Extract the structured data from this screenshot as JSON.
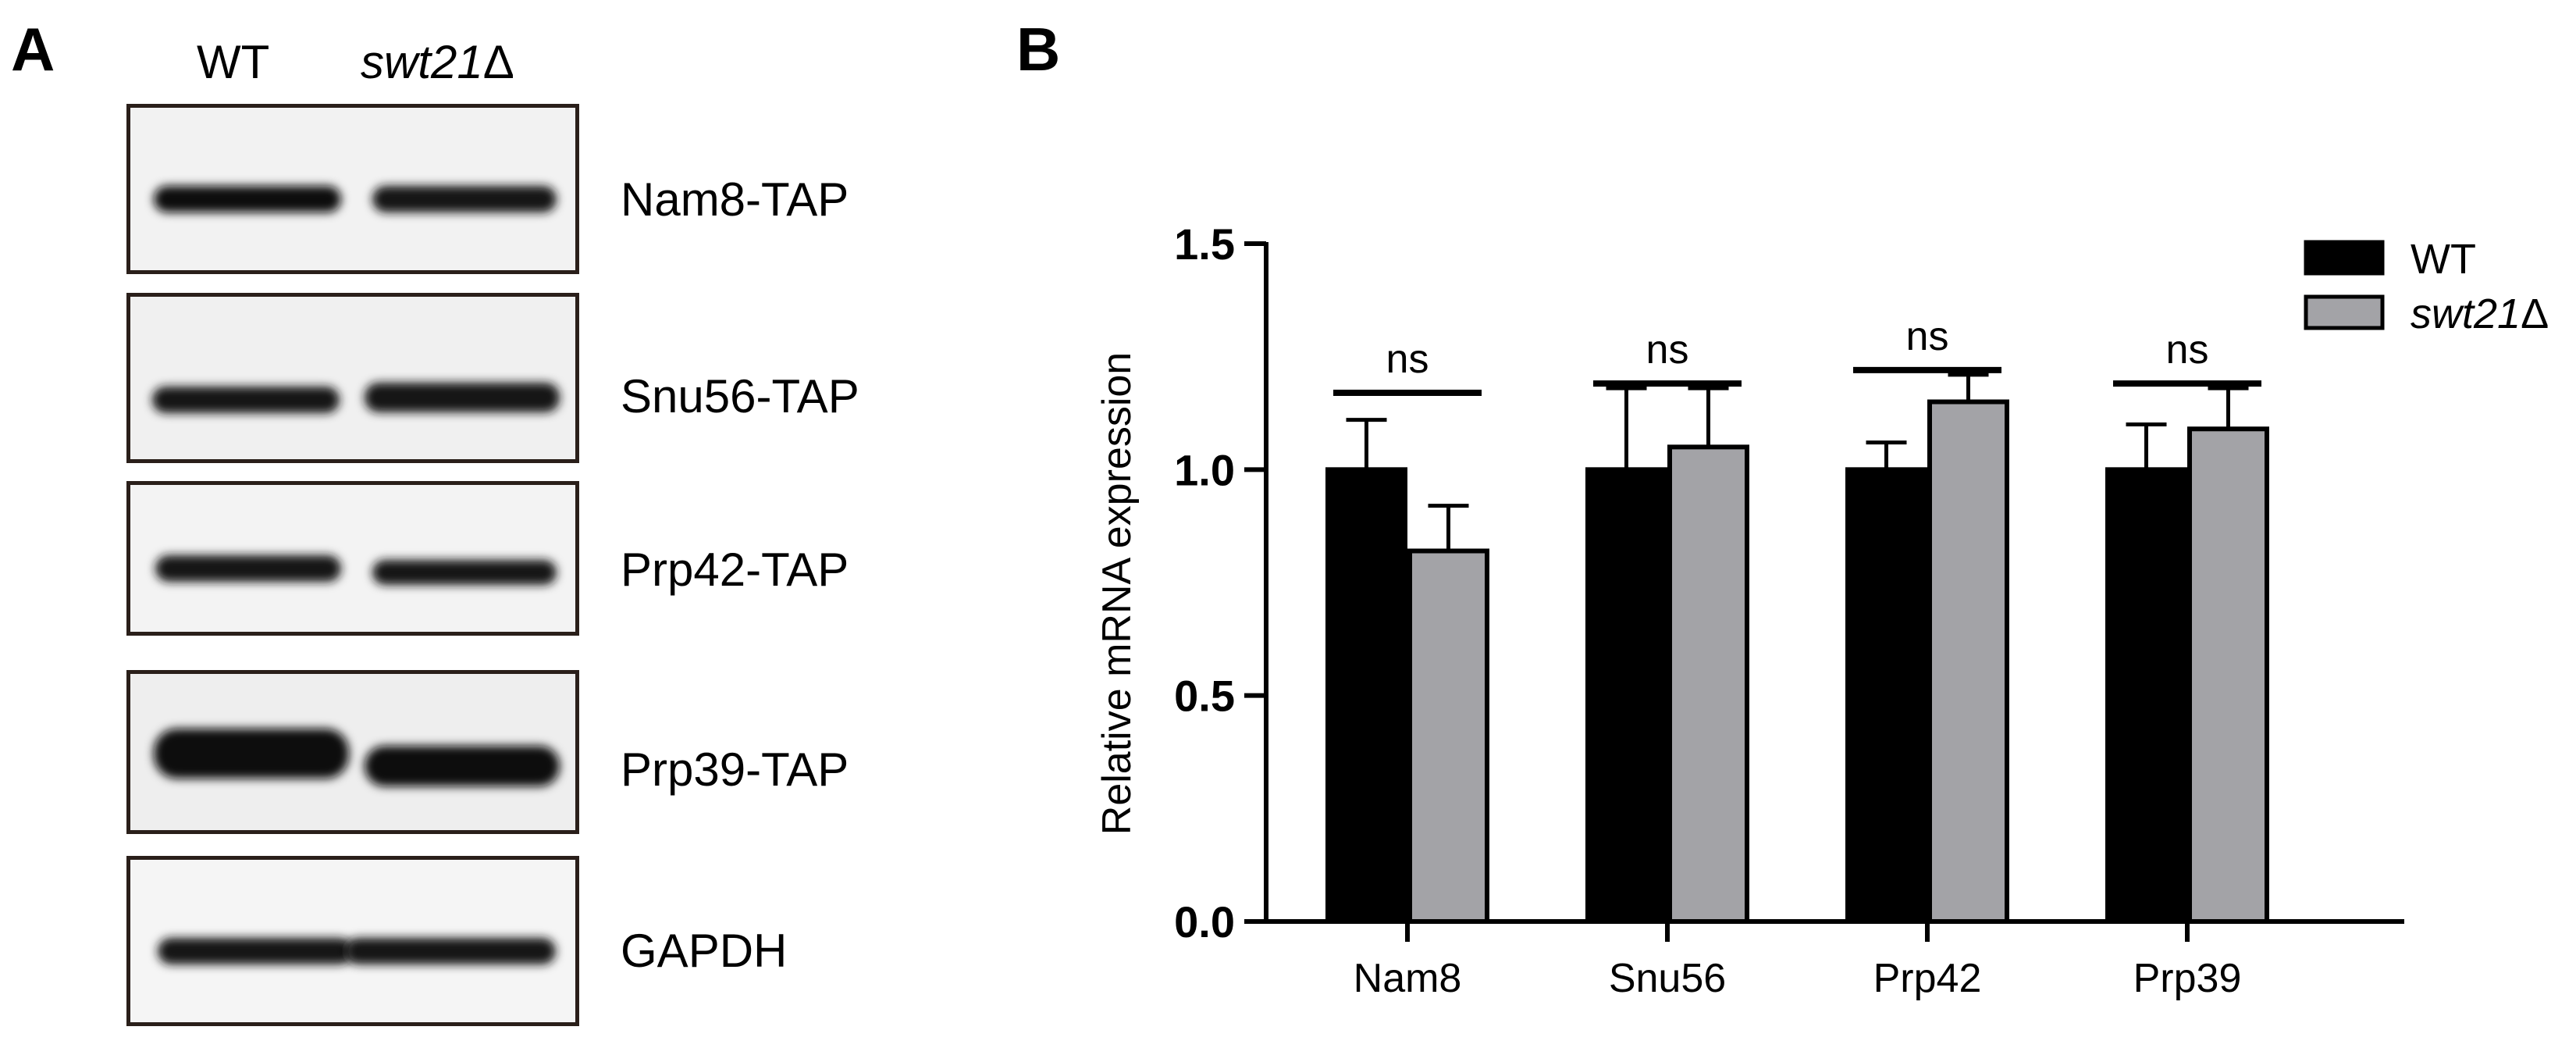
{
  "panel_a": {
    "letter": "A",
    "column_headers": {
      "wt": "WT",
      "mutant_italic": "swt21",
      "mutant_suffix": "Δ"
    },
    "blots": [
      {
        "label": "Nam8-TAP"
      },
      {
        "label": "Snu56-TAP"
      },
      {
        "label": "Prp42-TAP"
      },
      {
        "label": "Prp39-TAP"
      },
      {
        "label": "GAPDH"
      }
    ]
  },
  "panel_b": {
    "letter": "B"
  },
  "chart_data": {
    "type": "bar",
    "title": "",
    "xlabel": "",
    "ylabel": "Relative mRNA expression",
    "ylim": [
      0,
      1.5
    ],
    "yticks": [
      "0.0",
      "0.5",
      "1.0",
      "1.5"
    ],
    "categories": [
      "Nam8",
      "Snu56",
      "Prp42",
      "Prp39"
    ],
    "series": [
      {
        "name": "WT",
        "values": [
          1.0,
          1.0,
          1.0,
          1.0
        ],
        "errors": [
          0.11,
          0.18,
          0.06,
          0.1
        ],
        "color": "#000000"
      },
      {
        "name": "swt21Δ",
        "values": [
          0.82,
          1.05,
          1.15,
          1.09
        ],
        "errors": [
          0.1,
          0.13,
          0.06,
          0.09
        ],
        "color": "#a3a3a7"
      }
    ],
    "annotations": [
      "ns",
      "ns",
      "ns",
      "ns"
    ],
    "legend_position": "top-right",
    "legend": [
      {
        "name": "WT",
        "color": "#000000"
      },
      {
        "name_italic": "swt21",
        "name_suffix": "Δ",
        "color": "#a3a3a7"
      }
    ],
    "grid": false
  }
}
